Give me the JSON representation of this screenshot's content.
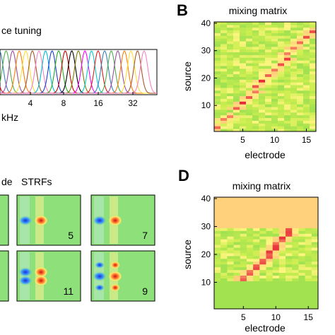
{
  "panel_letters": {
    "b": "B",
    "d": "D"
  },
  "panel_a": {
    "title_fragment": "ce tuning",
    "xlabel_fragment": "kHz",
    "x_ticks": [
      "4",
      "8",
      "16",
      "32"
    ],
    "n_curves": 24,
    "curve_colors": [
      "#e41a1c",
      "#377eb8",
      "#4daf4a",
      "#984ea3",
      "#ff7f00",
      "#ffdd33",
      "#a65628",
      "#f781bf",
      "#00bcd4",
      "#1f3bd6",
      "#22aa22",
      "#cc0000",
      "#000000",
      "#7a7a00",
      "#ff00ff",
      "#00cccc"
    ]
  },
  "panel_c": {
    "left_label_fragment": "de",
    "title": "STRFs",
    "tiles": [
      "5",
      "7",
      "11",
      "9"
    ]
  },
  "chart_data": [
    {
      "type": "heatmap",
      "title": "mixing matrix",
      "xlabel": "electrode",
      "ylabel": "source",
      "xlim": [
        0.5,
        16.5
      ],
      "ylim": [
        0.5,
        40.5
      ],
      "x_ticks": [
        5,
        10,
        15
      ],
      "y_ticks": [
        10,
        20,
        30,
        40
      ],
      "n_electrodes": 16,
      "n_sources": 40,
      "diagonal_peaks": [
        {
          "source": 2,
          "electrode": 1
        },
        {
          "source": 5,
          "electrode": 2
        },
        {
          "source": 6,
          "electrode": 3
        },
        {
          "source": 9,
          "electrode": 4
        },
        {
          "source": 11,
          "electrode": 5
        },
        {
          "source": 13,
          "electrode": 6
        },
        {
          "source": 15,
          "electrode": 7
        },
        {
          "source": 17,
          "electrode": 7
        },
        {
          "source": 19,
          "electrode": 8
        },
        {
          "source": 21,
          "electrode": 9
        },
        {
          "source": 23,
          "electrode": 10
        },
        {
          "source": 25,
          "electrode": 11
        },
        {
          "source": 27,
          "electrode": 12
        },
        {
          "source": 29,
          "electrode": 12
        },
        {
          "source": 31,
          "electrode": 13
        },
        {
          "source": 33,
          "electrode": 14
        },
        {
          "source": 35,
          "electrode": 15
        },
        {
          "source": 37,
          "electrode": 16
        }
      ]
    },
    {
      "type": "heatmap",
      "title": "mixing matrix",
      "xlabel": "electrode",
      "ylabel": "source",
      "xlim": [
        0.5,
        16.5
      ],
      "ylim": [
        0.5,
        40.5
      ],
      "x_ticks": [
        5,
        10,
        15
      ],
      "y_ticks": [
        10,
        20,
        30,
        40
      ],
      "n_electrodes": 16,
      "n_sources": 40,
      "rows_uniform_low": [
        1,
        2,
        3,
        4,
        5,
        6,
        7,
        8,
        9,
        10
      ],
      "rows_uniform_high": [
        30,
        31,
        32,
        33,
        34,
        35,
        36,
        37,
        38,
        39,
        40
      ],
      "diagonal_peaks": [
        {
          "source": 11,
          "electrode": 5
        },
        {
          "source": 12,
          "electrode": 5
        },
        {
          "source": 13,
          "electrode": 6
        },
        {
          "source": 14,
          "electrode": 6
        },
        {
          "source": 15,
          "electrode": 7
        },
        {
          "source": 16,
          "electrode": 7
        },
        {
          "source": 17,
          "electrode": 8
        },
        {
          "source": 18,
          "electrode": 8
        },
        {
          "source": 19,
          "electrode": 9
        },
        {
          "source": 20,
          "electrode": 9
        },
        {
          "source": 21,
          "electrode": 9
        },
        {
          "source": 22,
          "electrode": 10
        },
        {
          "source": 23,
          "electrode": 10
        },
        {
          "source": 24,
          "electrode": 10
        },
        {
          "source": 25,
          "electrode": 11
        },
        {
          "source": 26,
          "electrode": 11
        },
        {
          "source": 27,
          "electrode": 12
        },
        {
          "source": 28,
          "electrode": 12
        },
        {
          "source": 29,
          "electrode": 12
        }
      ]
    }
  ]
}
